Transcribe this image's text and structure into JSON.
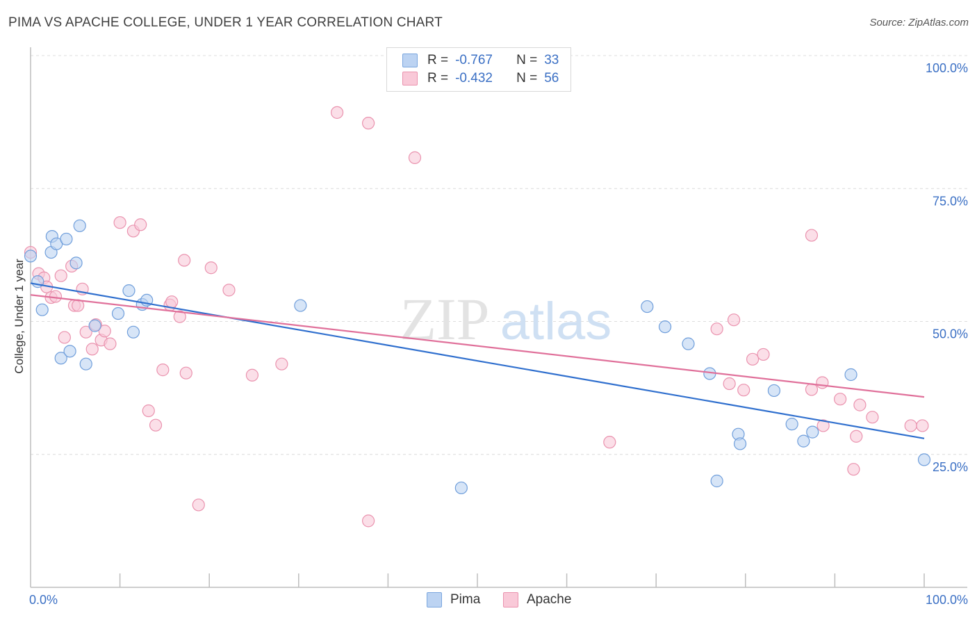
{
  "title": "PIMA VS APACHE COLLEGE, UNDER 1 YEAR CORRELATION CHART",
  "source": "Source: ZipAtlas.com",
  "watermark": {
    "zip": "ZIP",
    "atlas": "atlas"
  },
  "legend": {
    "rows": [
      {
        "r_label": "R =",
        "r_value": "-0.767",
        "n_label": "N =",
        "n_value": "33"
      },
      {
        "r_label": "R =",
        "r_value": "-0.432",
        "n_label": "N =",
        "n_value": "56"
      }
    ]
  },
  "bottom_legend": {
    "pima": "Pima",
    "apache": "Apache"
  },
  "chart_data": {
    "type": "scatter",
    "ylabel": "College, Under 1 year",
    "x_tick_labels": {
      "min": "0.0%",
      "max": "100.0%"
    },
    "y_tick_labels": [
      "100.0%",
      "75.0%",
      "50.0%",
      "25.0%"
    ],
    "xlim": [
      0,
      100
    ],
    "ylim": [
      0,
      100
    ],
    "colors": {
      "pima_fill": "#bcd3f2",
      "pima_stroke": "#6f9edb",
      "pima_line": "#2f6fce",
      "apache_fill": "#f9c9d8",
      "apache_stroke": "#ea92ae",
      "apache_line": "#e0709a",
      "tick_label": "#3a6fc4",
      "grid": "#dcdcdc"
    },
    "series": [
      {
        "name": "Pima",
        "trend": [
          [
            0,
            57.2
          ],
          [
            100,
            28.0
          ]
        ],
        "points": [
          [
            0.0,
            62.3
          ],
          [
            0.8,
            57.5
          ],
          [
            1.3,
            52.2
          ],
          [
            2.3,
            63.0
          ],
          [
            2.4,
            66.0
          ],
          [
            2.9,
            64.6
          ],
          [
            3.4,
            43.1
          ],
          [
            4.0,
            65.5
          ],
          [
            4.4,
            44.4
          ],
          [
            5.1,
            61.0
          ],
          [
            5.5,
            68.0
          ],
          [
            6.2,
            42.0
          ],
          [
            7.2,
            49.2
          ],
          [
            9.8,
            51.5
          ],
          [
            11.0,
            55.8
          ],
          [
            11.5,
            48.0
          ],
          [
            12.5,
            53.2
          ],
          [
            13.0,
            54.0
          ],
          [
            30.2,
            53.0
          ],
          [
            48.2,
            18.7
          ],
          [
            69.0,
            52.8
          ],
          [
            71.0,
            49.0
          ],
          [
            73.6,
            45.8
          ],
          [
            76.0,
            40.2
          ],
          [
            76.8,
            20.0
          ],
          [
            79.2,
            28.8
          ],
          [
            79.4,
            27.0
          ],
          [
            83.2,
            37.0
          ],
          [
            85.2,
            30.7
          ],
          [
            86.5,
            27.5
          ],
          [
            87.5,
            29.2
          ],
          [
            91.8,
            40.0
          ],
          [
            100.0,
            24.0
          ]
        ]
      },
      {
        "name": "Apache",
        "trend": [
          [
            0,
            55.0
          ],
          [
            100,
            35.8
          ]
        ],
        "points": [
          [
            0.0,
            63.0
          ],
          [
            0.9,
            59.0
          ],
          [
            1.5,
            58.2
          ],
          [
            1.8,
            56.5
          ],
          [
            2.3,
            54.5
          ],
          [
            2.8,
            54.7
          ],
          [
            3.4,
            58.6
          ],
          [
            3.8,
            47.0
          ],
          [
            4.6,
            60.4
          ],
          [
            4.9,
            53.0
          ],
          [
            5.3,
            53.0
          ],
          [
            5.8,
            56.1
          ],
          [
            6.2,
            48.0
          ],
          [
            6.9,
            44.8
          ],
          [
            7.3,
            49.4
          ],
          [
            7.9,
            46.5
          ],
          [
            8.3,
            48.2
          ],
          [
            8.9,
            45.8
          ],
          [
            10.0,
            68.6
          ],
          [
            11.5,
            67.0
          ],
          [
            12.3,
            68.2
          ],
          [
            13.2,
            33.2
          ],
          [
            14.0,
            30.5
          ],
          [
            14.8,
            40.9
          ],
          [
            15.6,
            53.1
          ],
          [
            15.8,
            53.7
          ],
          [
            16.7,
            50.9
          ],
          [
            17.2,
            61.5
          ],
          [
            17.4,
            40.3
          ],
          [
            18.8,
            15.5
          ],
          [
            20.2,
            60.1
          ],
          [
            22.2,
            55.9
          ],
          [
            24.8,
            39.9
          ],
          [
            28.1,
            42.0
          ],
          [
            34.3,
            89.3
          ],
          [
            37.8,
            87.3
          ],
          [
            37.8,
            12.5
          ],
          [
            43.0,
            80.8
          ],
          [
            64.8,
            27.3
          ],
          [
            76.8,
            48.6
          ],
          [
            78.2,
            38.3
          ],
          [
            78.7,
            50.3
          ],
          [
            79.8,
            37.1
          ],
          [
            80.8,
            42.9
          ],
          [
            82.0,
            43.8
          ],
          [
            87.4,
            37.2
          ],
          [
            87.4,
            66.2
          ],
          [
            88.6,
            38.5
          ],
          [
            88.7,
            30.4
          ],
          [
            90.6,
            35.4
          ],
          [
            92.1,
            22.2
          ],
          [
            92.4,
            28.4
          ],
          [
            92.8,
            34.3
          ],
          [
            94.2,
            32.0
          ],
          [
            98.5,
            30.4
          ],
          [
            99.8,
            30.4
          ]
        ]
      }
    ]
  }
}
